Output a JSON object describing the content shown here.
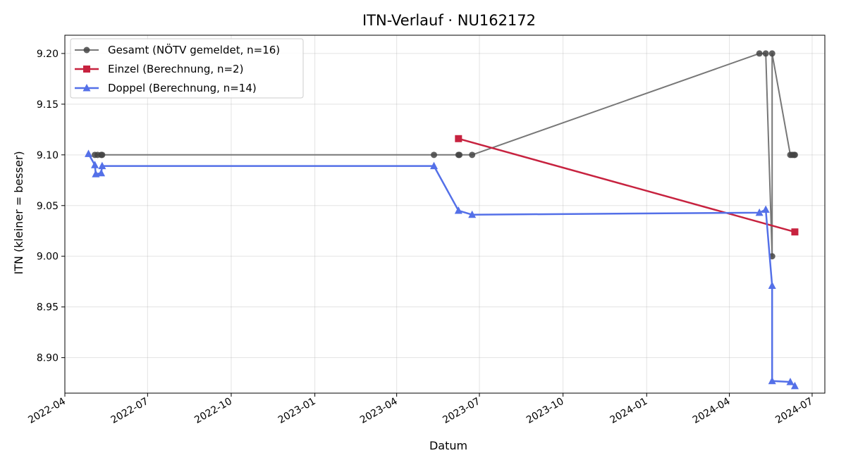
{
  "chart_data": {
    "type": "line",
    "title": "ITN-Verlauf · NU162172",
    "xlabel": "Datum",
    "ylabel": "ITN  (kleiner = besser)",
    "x_type": "date",
    "xlim": [
      "2022-04-01",
      "2024-07-15"
    ],
    "ylim": [
      8.865,
      9.218
    ],
    "grid": true,
    "legend_position": "top-left",
    "x_ticks": [
      "2022-04-01",
      "2022-07-01",
      "2022-10-01",
      "2023-01-01",
      "2023-04-01",
      "2023-07-01",
      "2023-10-01",
      "2024-01-01",
      "2024-04-01",
      "2024-07-01"
    ],
    "x_tick_labels": [
      "2022-04",
      "2022-07",
      "2022-10",
      "2023-01",
      "2023-04",
      "2023-07",
      "2023-10",
      "2024-01",
      "2024-04",
      "2024-07"
    ],
    "y_ticks": [
      8.9,
      8.95,
      9.0,
      9.05,
      9.1,
      9.15,
      9.2
    ],
    "y_tick_labels": [
      "8.90",
      "8.95",
      "9.00",
      "9.05",
      "9.10",
      "9.15",
      "9.20"
    ],
    "series": [
      {
        "name": "Gesamt (NÖTV gemeldet, n=16)",
        "color": "#777777",
        "marker": "circle",
        "points": [
          {
            "x": "2022-05-04",
            "y": 9.1
          },
          {
            "x": "2022-05-07",
            "y": 9.1
          },
          {
            "x": "2022-05-11",
            "y": 9.1
          },
          {
            "x": "2022-05-12",
            "y": 9.1
          },
          {
            "x": "2023-05-12",
            "y": 9.1
          },
          {
            "x": "2023-06-08",
            "y": 9.1
          },
          {
            "x": "2023-06-09",
            "y": 9.1
          },
          {
            "x": "2023-06-23",
            "y": 9.1
          },
          {
            "x": "2024-05-04",
            "y": 9.2
          },
          {
            "x": "2024-05-11",
            "y": 9.2
          },
          {
            "x": "2024-05-18",
            "y": 9.0
          },
          {
            "x": "2024-05-18",
            "y": 9.2
          },
          {
            "x": "2024-06-07",
            "y": 9.1
          },
          {
            "x": "2024-06-09",
            "y": 9.1
          },
          {
            "x": "2024-06-11",
            "y": 9.1
          },
          {
            "x": "2024-06-12",
            "y": 9.1
          }
        ]
      },
      {
        "name": "Einzel (Berechnung, n=2)",
        "color": "#c7223f",
        "marker": "square",
        "points": [
          {
            "x": "2023-06-08",
            "y": 9.116
          },
          {
            "x": "2024-06-12",
            "y": 9.024
          }
        ]
      },
      {
        "name": "Doppel (Berechnung, n=14)",
        "color": "#5470e8",
        "marker": "triangle",
        "points": [
          {
            "x": "2022-04-27",
            "y": 9.101
          },
          {
            "x": "2022-05-04",
            "y": 9.09
          },
          {
            "x": "2022-05-05",
            "y": 9.081
          },
          {
            "x": "2022-05-11",
            "y": 9.082
          },
          {
            "x": "2022-05-12",
            "y": 9.089
          },
          {
            "x": "2023-05-12",
            "y": 9.089
          },
          {
            "x": "2023-06-08",
            "y": 9.045
          },
          {
            "x": "2023-06-23",
            "y": 9.041
          },
          {
            "x": "2024-05-04",
            "y": 9.043
          },
          {
            "x": "2024-05-11",
            "y": 9.046
          },
          {
            "x": "2024-05-18",
            "y": 8.971
          },
          {
            "x": "2024-05-18",
            "y": 8.877
          },
          {
            "x": "2024-06-07",
            "y": 8.876
          },
          {
            "x": "2024-06-12",
            "y": 8.872
          }
        ]
      }
    ]
  }
}
